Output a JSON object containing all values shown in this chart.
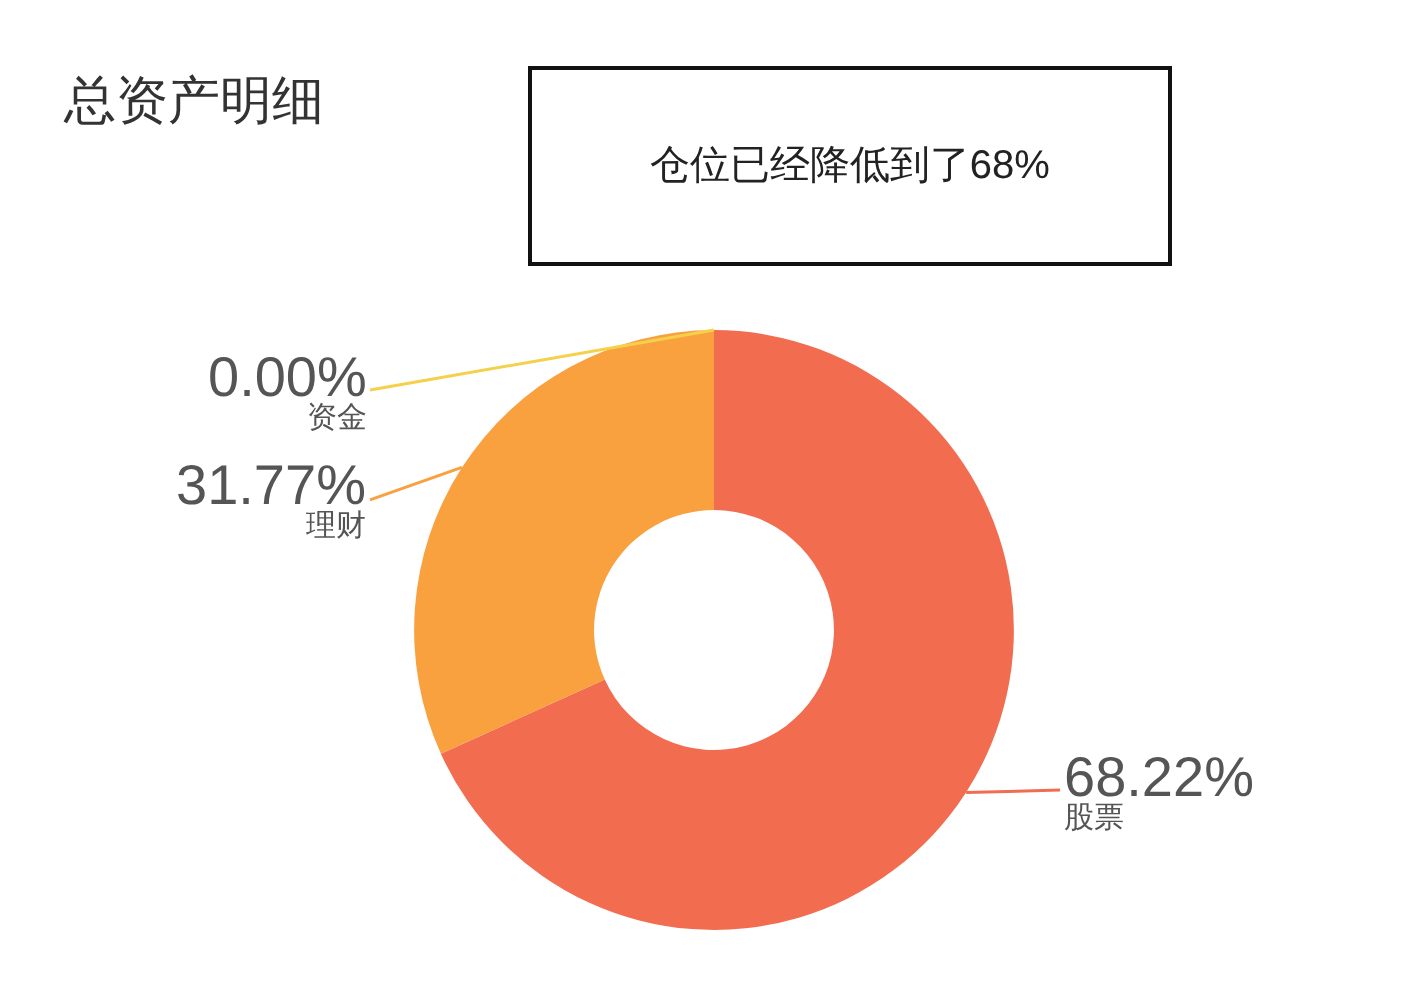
{
  "chart_data": {
    "type": "donut",
    "title": "总资产明细",
    "categories": [
      "股票",
      "理财",
      "资金"
    ],
    "values": [
      68.22,
      31.77,
      0.0
    ],
    "value_labels": [
      "68.22%",
      "31.77%",
      "0.00%"
    ],
    "colors": [
      "#f26c50",
      "#f9a03f",
      "#f5d04a"
    ],
    "annotations": [
      "仓位已经降低到了68%"
    ],
    "legend": false
  }
}
